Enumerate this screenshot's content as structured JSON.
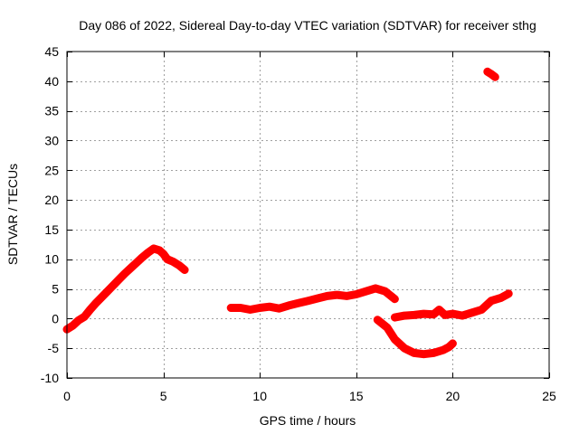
{
  "chart_data": {
    "type": "scatter",
    "title": "Day 086 of 2022, Sidereal Day-to-day VTEC variation (SDTVAR) for receiver sthg",
    "xlabel": "GPS time / hours",
    "ylabel": "SDTVAR / TECUs",
    "xlim": [
      0,
      25
    ],
    "ylim": [
      -10,
      45
    ],
    "xticks": [
      0,
      5,
      10,
      15,
      20,
      25
    ],
    "yticks": [
      -10,
      -5,
      0,
      5,
      10,
      15,
      20,
      25,
      30,
      35,
      40,
      45
    ],
    "grid": true,
    "color": "#ff0000",
    "series": [
      {
        "name": "segment-1",
        "x": [
          0.0,
          0.3,
          0.6,
          0.9,
          1.2,
          1.5,
          1.8,
          2.1,
          2.4,
          2.7,
          3.0,
          3.3,
          3.6,
          3.9,
          4.2,
          4.5,
          4.8,
          5.0,
          5.2,
          5.5,
          5.8,
          6.1
        ],
        "y": [
          -1.8,
          -1.2,
          -0.3,
          0.3,
          1.5,
          2.6,
          3.6,
          4.6,
          5.6,
          6.6,
          7.6,
          8.5,
          9.4,
          10.3,
          11.1,
          11.8,
          11.5,
          10.9,
          10.0,
          9.6,
          9.0,
          8.2
        ]
      },
      {
        "name": "segment-2",
        "x": [
          8.5,
          9.0,
          9.5,
          10.0,
          10.5,
          11.0,
          11.5,
          12.0,
          12.5,
          13.0,
          13.5,
          14.0,
          14.5,
          15.0,
          15.5,
          16.0,
          16.5,
          17.0
        ],
        "y": [
          1.8,
          1.8,
          1.5,
          1.8,
          2.0,
          1.7,
          2.2,
          2.6,
          3.0,
          3.4,
          3.8,
          4.0,
          3.8,
          4.1,
          4.6,
          5.1,
          4.6,
          3.3
        ]
      },
      {
        "name": "segment-3",
        "x": [
          17.0,
          17.5,
          18.0,
          18.5,
          19.0,
          19.3,
          19.6,
          20.0,
          20.5,
          21.0,
          21.5,
          22.0,
          22.5,
          22.9
        ],
        "y": [
          0.2,
          0.5,
          0.6,
          0.8,
          0.7,
          1.5,
          0.6,
          0.8,
          0.5,
          1.0,
          1.5,
          3.0,
          3.5,
          4.2
        ]
      },
      {
        "name": "segment-4",
        "x": [
          16.1,
          16.6,
          17.0,
          17.5,
          18.0,
          18.5,
          19.0,
          19.5,
          19.8,
          20.0
        ],
        "y": [
          -0.2,
          -1.5,
          -3.5,
          -5.0,
          -5.8,
          -6.0,
          -5.8,
          -5.3,
          -4.8,
          -4.2
        ]
      },
      {
        "name": "segment-5",
        "x": [
          21.8,
          22.0,
          22.2
        ],
        "y": [
          41.6,
          41.2,
          40.7
        ]
      }
    ]
  }
}
